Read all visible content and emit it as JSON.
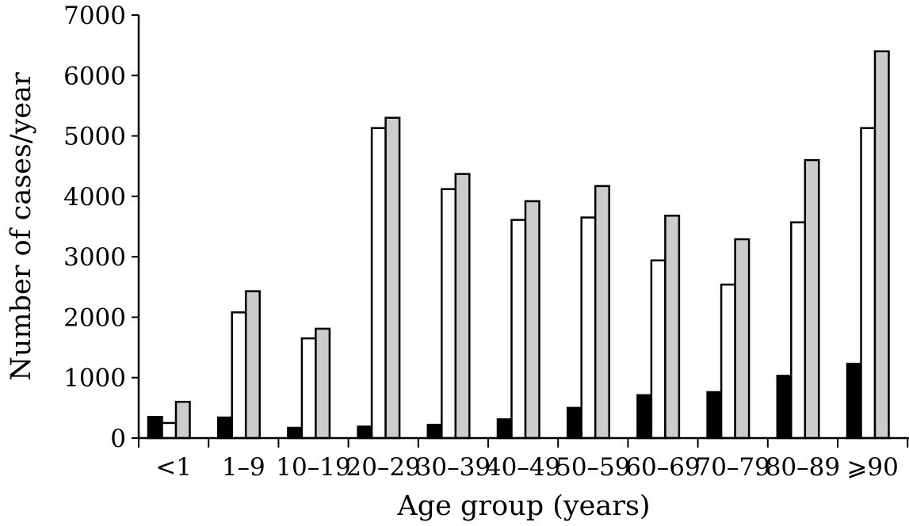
{
  "chart_data": {
    "type": "bar",
    "title": "",
    "xlabel": "Age group (years)",
    "ylabel": "Number of cases/year",
    "ylim": [
      0,
      7000
    ],
    "yticks": [
      "0",
      "1000",
      "2000",
      "3000",
      "4000",
      "5000",
      "6000",
      "7000"
    ],
    "grid": false,
    "legend": "none",
    "categories": [
      "<1",
      "1–9",
      "10–19",
      "20–29",
      "30–39",
      "40–49",
      "50–59",
      "60–69",
      "70–79",
      "80–89",
      "⩾90"
    ],
    "series": [
      {
        "color": "#000000",
        "values": [
          350,
          340,
          170,
          190,
          220,
          310,
          500,
          710,
          760,
          1030,
          1230
        ]
      },
      {
        "color": "#ffffff",
        "values": [
          250,
          2080,
          1650,
          5130,
          4120,
          3610,
          3650,
          2940,
          2540,
          3570,
          5130
        ]
      },
      {
        "color": "#cccccc",
        "values": [
          600,
          2430,
          1810,
          5300,
          4370,
          3920,
          4170,
          3680,
          3290,
          4600,
          6400
        ]
      }
    ]
  }
}
